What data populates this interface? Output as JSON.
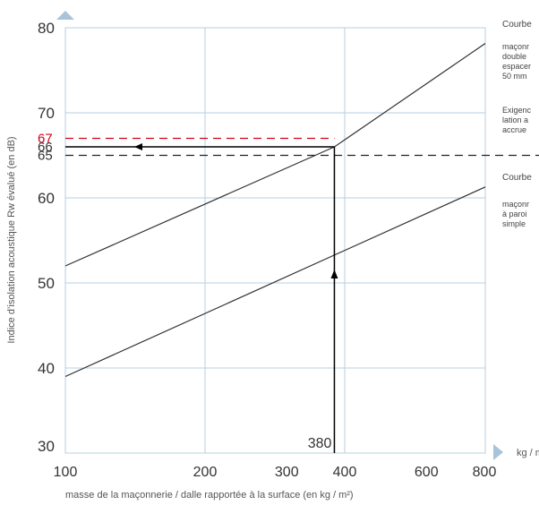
{
  "chart_data": {
    "type": "line",
    "xlabel": "masse de la maçonnerie / dalle rapportée à la surface (en kg / m²)",
    "ylabel": "Indice d’isolation acoustique Rw évalué (en dB)",
    "x_scale": "log",
    "x_unit": "kg / m",
    "xlim": [
      100,
      900
    ],
    "ylim": [
      30,
      80
    ],
    "x_ticks": [
      100,
      200,
      300,
      400,
      600,
      800
    ],
    "y_ticks": [
      30,
      40,
      50,
      60,
      70,
      80
    ],
    "y_marks": [
      {
        "value": 67,
        "label": "67",
        "color": "#d0021b"
      },
      {
        "value": 66,
        "label": "66",
        "color": "#333333"
      },
      {
        "value": 65,
        "label": "65",
        "color": "#333333"
      }
    ],
    "x_marker": {
      "value": 380,
      "label": "380"
    },
    "grid": true,
    "series": [
      {
        "points": [
          [
            100,
            52
          ],
          [
            380,
            66
          ],
          [
            900,
            80
          ]
        ]
      },
      {
        "points": [
          [
            100,
            39
          ],
          [
            900,
            62.5
          ]
        ]
      }
    ],
    "reference_lines": [
      {
        "y": 67,
        "style": "dashed",
        "color": "#d0021b",
        "x_end": 380
      },
      {
        "y": 65,
        "style": "dashed",
        "color": "#222222"
      }
    ],
    "reading_path": {
      "x": 380,
      "y": 66
    },
    "annotations": {
      "curve_top_head": "Courbe",
      "curve_top_lines": [
        "maçonr",
        "double",
        "espacer",
        "50 mm"
      ],
      "requirement_lines": [
        "Exigenc",
        "lation a",
        "accrue"
      ],
      "curve_bottom_head": "Courbe",
      "curve_bottom_lines": [
        "maçonr",
        "à paroi",
        "simple"
      ]
    }
  },
  "colors": {
    "frame": "#b7cfe0",
    "axis_arrow": "#a9c4d8",
    "curve": "#333333",
    "highlight": "#d0021b",
    "path": "#000000"
  }
}
